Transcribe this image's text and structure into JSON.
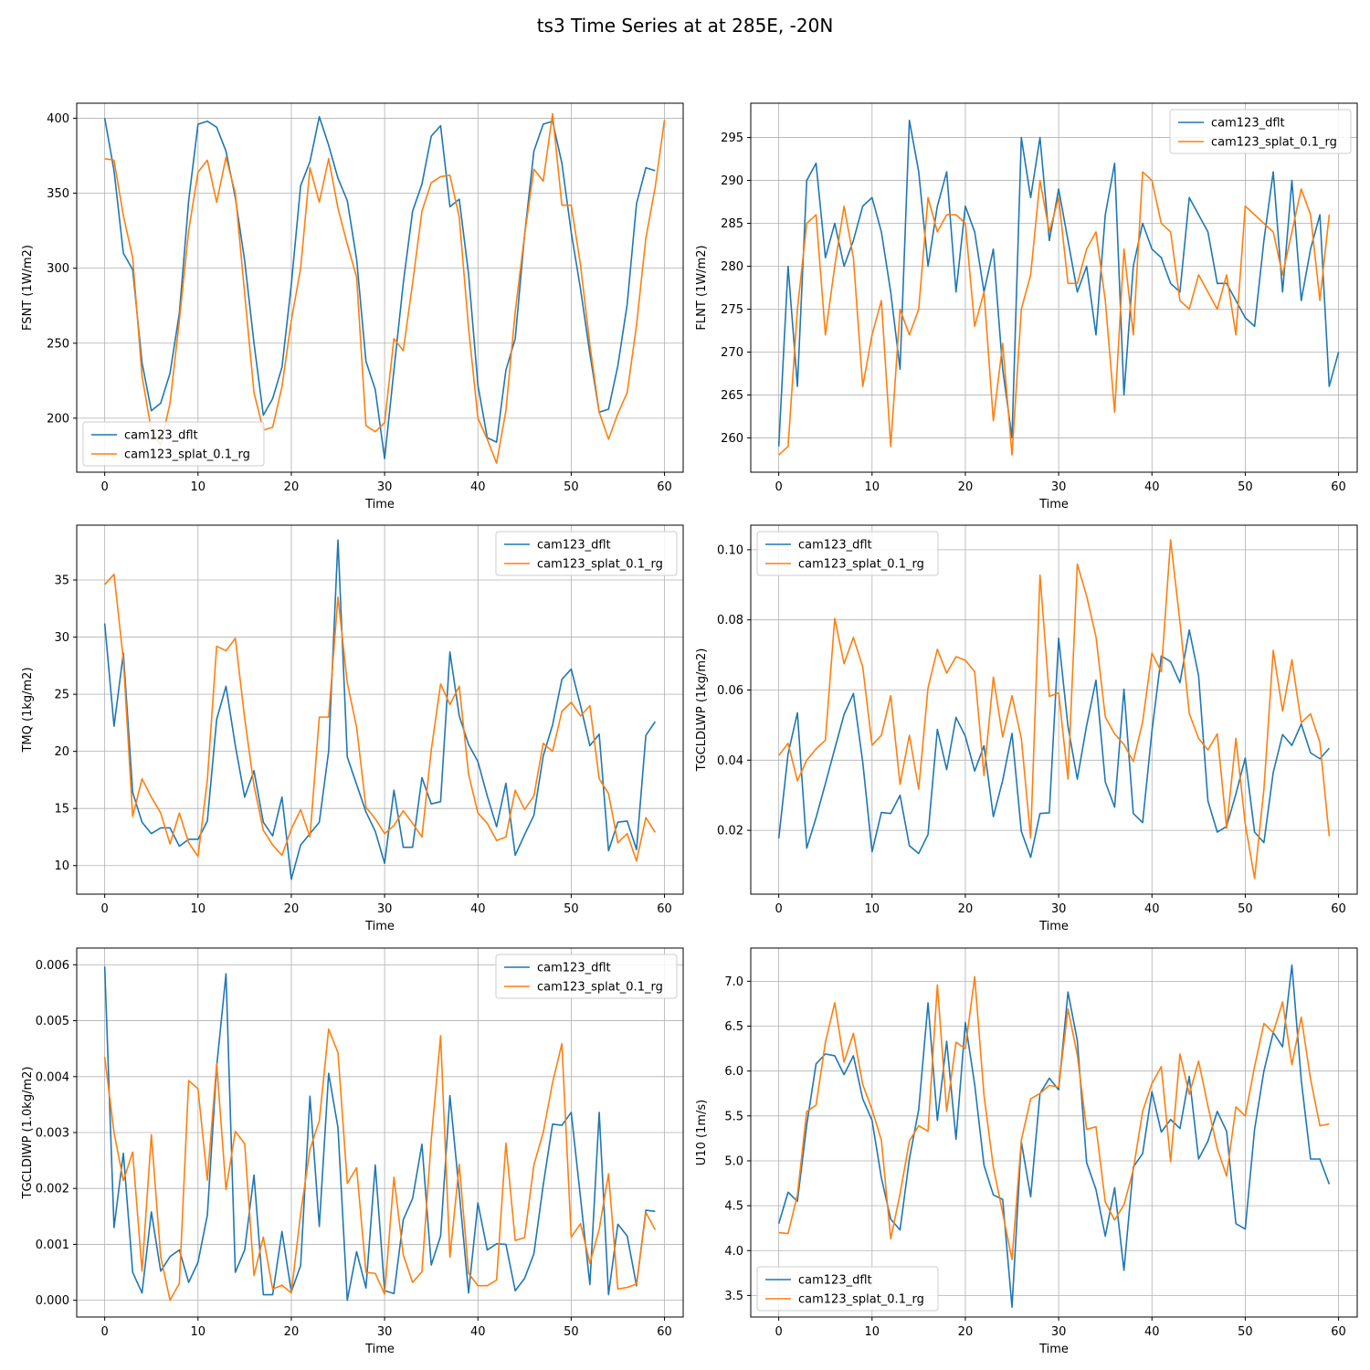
{
  "figure": {
    "title": "ts3 Time Series at at 285E, -20N"
  },
  "colors": {
    "cam123_dflt": "#1f77b4",
    "cam123_splat_0.1_rg": "#ff7f0e",
    "grid": "#b0b0b0"
  },
  "chart_data": [
    {
      "type": "line",
      "xlabel": "Time",
      "ylabel": "FSNT (1W/m2)",
      "legend": "lower-left",
      "xlim": [
        -3,
        62
      ],
      "ylim": [
        164,
        410
      ],
      "xticks": [
        0,
        10,
        20,
        30,
        40,
        50,
        60
      ],
      "yticks": [
        200,
        250,
        300,
        350,
        400
      ],
      "series": [
        {
          "name": "cam123_dflt",
          "values": [
            400,
            365,
            310,
            299,
            237,
            205,
            210,
            230,
            270,
            345,
            396,
            398,
            394,
            378,
            347,
            305,
            250,
            202,
            213,
            234,
            289,
            355,
            371,
            401,
            382,
            360,
            345,
            306,
            238,
            219,
            173,
            232,
            290,
            338,
            356,
            388,
            395,
            341,
            346,
            296,
            222,
            187,
            184,
            232,
            253,
            322,
            378,
            396,
            398,
            370,
            324,
            286,
            243,
            204,
            206,
            235,
            276,
            343,
            367,
            365
          ]
        },
        {
          "name": "cam123_splat_0.1_rg",
          "values": [
            373,
            372,
            335,
            307,
            228,
            192,
            182,
            210,
            265,
            325,
            364,
            372,
            344,
            374,
            350,
            283,
            217,
            192,
            194,
            221,
            265,
            300,
            367,
            344,
            373,
            340,
            316,
            294,
            195,
            191,
            197,
            253,
            245,
            290,
            338,
            357,
            361,
            362,
            334,
            260,
            200,
            186,
            170,
            205,
            271,
            322,
            366,
            358,
            403,
            342,
            342,
            302,
            249,
            204,
            186,
            203,
            217,
            262,
            320,
            354,
            399
          ]
        }
      ]
    },
    {
      "type": "line",
      "xlabel": "Time",
      "ylabel": "FLNT (1W/m2)",
      "legend": "upper-right",
      "xlim": [
        -3,
        62
      ],
      "ylim": [
        256,
        299
      ],
      "xticks": [
        0,
        10,
        20,
        30,
        40,
        50,
        60
      ],
      "yticks": [
        260,
        265,
        270,
        275,
        280,
        285,
        290,
        295
      ],
      "series": [
        {
          "name": "cam123_dflt",
          "values": [
            259,
            280,
            266,
            290,
            292,
            281,
            285,
            280,
            283,
            287,
            288,
            284,
            277,
            268,
            297,
            291,
            280,
            287,
            291,
            277,
            287,
            284,
            277,
            282,
            268,
            260,
            295,
            288,
            295,
            283,
            289,
            283,
            277,
            280,
            272,
            286,
            292,
            265,
            280,
            285,
            282,
            281,
            278,
            277,
            288,
            286,
            284,
            278,
            278,
            276,
            274,
            273,
            283,
            291,
            277,
            290,
            276,
            282,
            286,
            266,
            270
          ]
        },
        {
          "name": "cam123_splat_0.1_rg",
          "values": [
            258,
            259,
            275,
            285,
            286,
            272,
            280,
            287,
            281,
            266,
            272,
            276,
            259,
            275,
            272,
            275,
            288,
            284,
            286,
            286,
            285,
            273,
            277,
            262,
            271,
            258,
            275,
            279,
            290,
            284,
            288,
            278,
            278,
            282,
            284,
            276,
            263,
            282,
            272,
            291,
            290,
            285,
            284,
            276,
            275,
            279,
            277,
            275,
            279,
            272,
            287,
            286,
            285,
            284,
            279,
            284,
            289,
            286,
            276,
            286
          ]
        }
      ]
    },
    {
      "type": "line",
      "xlabel": "Time",
      "ylabel": "TMQ (1kg/m2)",
      "legend": "upper-right",
      "xlim": [
        -3,
        62
      ],
      "ylim": [
        7.5,
        39.8
      ],
      "xticks": [
        0,
        10,
        20,
        30,
        40,
        50,
        60
      ],
      "yticks": [
        10,
        15,
        20,
        25,
        30,
        35
      ],
      "series": [
        {
          "name": "cam123_dflt",
          "values": [
            31.2,
            22.2,
            28.6,
            16.4,
            13.8,
            12.8,
            13.3,
            13.3,
            11.7,
            12.3,
            12.3,
            13.9,
            22.8,
            25.7,
            20.5,
            16.0,
            18.3,
            13.8,
            12.6,
            16.0,
            8.8,
            11.8,
            12.8,
            13.8,
            20.0,
            38.5,
            19.5,
            17.1,
            14.7,
            13.0,
            10.2,
            16.6,
            11.6,
            11.6,
            17.7,
            15.4,
            15.6,
            28.7,
            23.1,
            20.6,
            19.1,
            16.1,
            13.4,
            17.2,
            10.9,
            12.7,
            14.4,
            19.6,
            22.3,
            26.3,
            27.2,
            24.0,
            20.5,
            21.5,
            11.3,
            13.8,
            13.9,
            11.4,
            21.4,
            22.6
          ]
        },
        {
          "name": "cam123_splat_0.1_rg",
          "values": [
            34.6,
            35.5,
            28.0,
            14.3,
            17.6,
            16.0,
            14.6,
            11.9,
            14.6,
            12.0,
            10.8,
            17.5,
            29.2,
            28.8,
            29.9,
            22.9,
            17.0,
            13.1,
            11.8,
            10.9,
            13.2,
            14.9,
            12.5,
            23.0,
            23.0,
            33.5,
            26.0,
            22.1,
            15.1,
            14.1,
            12.8,
            13.5,
            14.8,
            13.7,
            12.5,
            20.1,
            25.9,
            24.1,
            25.7,
            18.0,
            14.6,
            13.7,
            12.2,
            12.5,
            16.6,
            14.9,
            16.1,
            20.7,
            20.0,
            23.5,
            24.3,
            23.1,
            24.0,
            17.6,
            16.3,
            12.0,
            12.8,
            10.4,
            14.2,
            12.9
          ]
        }
      ]
    },
    {
      "type": "line",
      "xlabel": "Time",
      "ylabel": "TGCLDLWP (1kg/m2)",
      "legend": "upper-left",
      "xlim": [
        -3,
        62
      ],
      "ylim": [
        0.0018,
        0.107
      ],
      "xticks": [
        0,
        10,
        20,
        30,
        40,
        50,
        60
      ],
      "yticks": [
        0.02,
        0.04,
        0.06,
        0.08,
        0.1
      ],
      "ytick_labels": [
        "0.02",
        "0.04",
        "0.06",
        "0.08",
        "0.10"
      ],
      "series": [
        {
          "name": "cam123_dflt",
          "values": [
            0.0177,
            0.0418,
            0.0535,
            0.0149,
            0.0236,
            0.0333,
            0.0432,
            0.053,
            0.059,
            0.0395,
            0.0139,
            0.0251,
            0.0248,
            0.03,
            0.0156,
            0.0134,
            0.0188,
            0.0488,
            0.0373,
            0.0522,
            0.0468,
            0.0369,
            0.0441,
            0.0239,
            0.0342,
            0.0476,
            0.0197,
            0.0123,
            0.0248,
            0.025,
            0.0748,
            0.0496,
            0.0346,
            0.0499,
            0.0628,
            0.0338,
            0.0266,
            0.0602,
            0.0248,
            0.0222,
            0.0483,
            0.0697,
            0.0681,
            0.0621,
            0.0771,
            0.0641,
            0.0284,
            0.0195,
            0.0211,
            0.0304,
            0.0406,
            0.0195,
            0.0165,
            0.0365,
            0.0473,
            0.0442,
            0.0503,
            0.0421,
            0.0404,
            0.0434
          ]
        },
        {
          "name": "cam123_splat_0.1_rg",
          "values": [
            0.0413,
            0.0448,
            0.0341,
            0.04,
            0.0432,
            0.0457,
            0.0804,
            0.0675,
            0.075,
            0.0666,
            0.0443,
            0.0471,
            0.0584,
            0.0331,
            0.0471,
            0.0317,
            0.0606,
            0.0716,
            0.0648,
            0.0695,
            0.0685,
            0.0652,
            0.0356,
            0.0637,
            0.0466,
            0.0584,
            0.0462,
            0.0178,
            0.0928,
            0.0582,
            0.0592,
            0.0346,
            0.0959,
            0.0868,
            0.0752,
            0.0523,
            0.0475,
            0.0445,
            0.0396,
            0.0509,
            0.0705,
            0.0652,
            0.1028,
            0.0794,
            0.0533,
            0.0462,
            0.0429,
            0.0475,
            0.0206,
            0.0462,
            0.0218,
            0.0063,
            0.0317,
            0.0713,
            0.054,
            0.0686,
            0.0507,
            0.0532,
            0.0451,
            0.0183
          ]
        }
      ]
    },
    {
      "type": "line",
      "xlabel": "Time",
      "ylabel": "TGCLDIWP (1.0kg/m2)",
      "legend": "upper-right",
      "xlim": [
        -3,
        62
      ],
      "ylim": [
        -0.0003,
        0.0063
      ],
      "xticks": [
        0,
        10,
        20,
        30,
        40,
        50,
        60
      ],
      "yticks": [
        0,
        0.001,
        0.002,
        0.003,
        0.004,
        0.005,
        0.006
      ],
      "ytick_labels": [
        "0.000",
        "0.001",
        "0.002",
        "0.003",
        "0.004",
        "0.005",
        "0.006"
      ],
      "series": [
        {
          "name": "cam123_dflt",
          "values": [
            0.00597,
            0.0013,
            0.00263,
            0.0005,
            0.00013,
            0.00158,
            0.00052,
            0.00078,
            0.0009,
            0.00032,
            0.00068,
            0.00152,
            0.00418,
            0.00584,
            0.0005,
            0.0009,
            0.00224,
            0.0001,
            0.0001,
            0.00123,
            0.00015,
            0.00062,
            0.00365,
            0.00132,
            0.00406,
            0.00309,
            0.0,
            0.00087,
            0.00022,
            0.00242,
            0.00017,
            0.00012,
            0.00144,
            0.00182,
            0.00279,
            0.00063,
            0.00115,
            0.00366,
            0.00193,
            0.00013,
            0.00174,
            0.0009,
            0.00101,
            0.001,
            0.00017,
            0.00039,
            0.00083,
            0.00206,
            0.00315,
            0.00313,
            0.00336,
            0.00183,
            0.00028,
            0.00336,
            0.0001,
            0.00136,
            0.00115,
            0.00026,
            0.00161,
            0.00159
          ]
        },
        {
          "name": "cam123_splat_0.1_rg",
          "values": [
            0.00435,
            0.003,
            0.00214,
            0.00265,
            0.00052,
            0.00296,
            0.00078,
            0.0,
            0.0003,
            0.00393,
            0.00378,
            0.00215,
            0.00423,
            0.00198,
            0.00302,
            0.0028,
            0.00044,
            0.00113,
            0.0002,
            0.00027,
            0.00013,
            0.00155,
            0.0027,
            0.00321,
            0.00485,
            0.00443,
            0.00209,
            0.00237,
            0.0005,
            0.00048,
            0.00011,
            0.0022,
            0.00081,
            0.00032,
            0.00051,
            0.00287,
            0.00473,
            0.00077,
            0.00243,
            0.00048,
            0.00026,
            0.00026,
            0.00036,
            0.00281,
            0.00107,
            0.00112,
            0.00242,
            0.003,
            0.00389,
            0.00459,
            0.00113,
            0.00137,
            0.00066,
            0.00127,
            0.00226,
            0.0002,
            0.00023,
            0.00029,
            0.00157,
            0.00126
          ]
        }
      ]
    },
    {
      "type": "line",
      "xlabel": "Time",
      "ylabel": "U10 (1m/s)",
      "legend": "lower-left",
      "xlim": [
        -3,
        62
      ],
      "ylim": [
        3.26,
        7.37
      ],
      "xticks": [
        0,
        10,
        20,
        30,
        40,
        50,
        60
      ],
      "yticks": [
        3.5,
        4.0,
        4.5,
        5.0,
        5.5,
        6.0,
        6.5,
        7.0
      ],
      "ytick_labels": [
        "3.5",
        "4.0",
        "4.5",
        "5.0",
        "5.5",
        "6.0",
        "6.5",
        "7.0"
      ],
      "series": [
        {
          "name": "cam123_dflt",
          "values": [
            4.3,
            4.65,
            4.55,
            5.4,
            6.08,
            6.19,
            6.17,
            5.96,
            6.17,
            5.69,
            5.45,
            4.81,
            4.35,
            4.23,
            5.02,
            5.57,
            6.76,
            5.45,
            6.33,
            5.24,
            6.54,
            5.85,
            4.95,
            4.62,
            4.57,
            3.37,
            5.21,
            4.6,
            5.75,
            5.92,
            5.79,
            6.88,
            6.34,
            4.98,
            4.68,
            4.16,
            4.7,
            3.78,
            4.93,
            5.08,
            5.77,
            5.32,
            5.46,
            5.36,
            5.94,
            5.02,
            5.22,
            5.55,
            5.33,
            4.3,
            4.24,
            5.35,
            6.0,
            6.43,
            6.27,
            7.18,
            5.9,
            5.02,
            5.02,
            4.74
          ]
        },
        {
          "name": "cam123_splat_0.1_rg",
          "values": [
            4.2,
            4.19,
            4.62,
            5.55,
            5.62,
            6.32,
            6.76,
            6.1,
            6.42,
            5.85,
            5.57,
            5.23,
            4.13,
            4.63,
            5.22,
            5.39,
            5.33,
            6.96,
            5.55,
            6.32,
            6.25,
            7.05,
            5.73,
            4.93,
            4.42,
            3.9,
            5.23,
            5.69,
            5.75,
            5.84,
            5.82,
            6.69,
            6.18,
            5.35,
            5.38,
            4.54,
            4.34,
            4.51,
            4.9,
            5.55,
            5.86,
            6.05,
            4.99,
            6.19,
            5.74,
            6.11,
            5.61,
            5.14,
            4.83,
            5.6,
            5.5,
            6.05,
            6.53,
            6.43,
            6.77,
            6.07,
            6.6,
            5.91,
            5.39,
            5.41
          ]
        }
      ]
    }
  ]
}
